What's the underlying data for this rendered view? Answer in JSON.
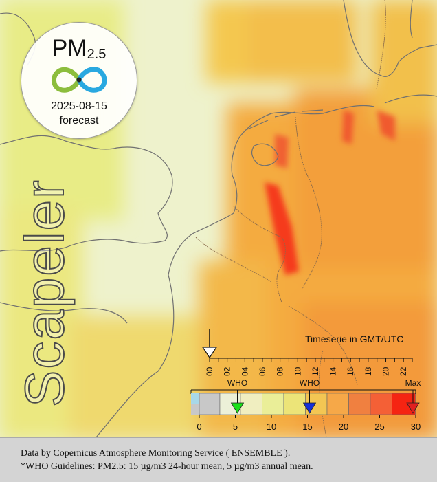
{
  "badge": {
    "pollutant_main": "PM",
    "pollutant_sub": "2.5",
    "date": "2025-08-15",
    "kind": "forecast",
    "logo_colors": [
      "#8cbd3c",
      "#29a8e0"
    ]
  },
  "brand": "Scapeler",
  "timeseries": {
    "title": "Timeserie in GMT/UTC",
    "hours": [
      "00",
      "02",
      "04",
      "06",
      "08",
      "10",
      "12",
      "14",
      "16",
      "18",
      "20",
      "22"
    ],
    "current_hour": "00"
  },
  "legend": {
    "who_label": "WHO",
    "max_label": "Max",
    "who_24h_value": 15,
    "who_annual_value": 5,
    "scale_max": 30,
    "ticks": [
      0,
      5,
      10,
      15,
      20,
      25,
      30
    ],
    "colors": [
      "#c8c8c8",
      "#ecf0d8",
      "#f0eec0",
      "#eaee98",
      "#ece478",
      "#f3c653",
      "#f6a848",
      "#f08040",
      "#f46036",
      "#f52412"
    ],
    "marker_colors": {
      "annual": "#19e019",
      "daily": "#1530d8",
      "max": "#e02020"
    }
  },
  "footer": {
    "line1": "Data by Copernicus Atmosphere Monitoring Service ( ENSEMBLE ).",
    "line2": "*WHO Guidelines: PM2.5: 15 µg/m3 24-hour mean, 5 µg/m3 annual mean."
  },
  "colors": {
    "sea": "#eef3cf",
    "land_low": "#f2eb60",
    "land_mid": "#f3a63b",
    "hotspot": "#f53b1a"
  }
}
